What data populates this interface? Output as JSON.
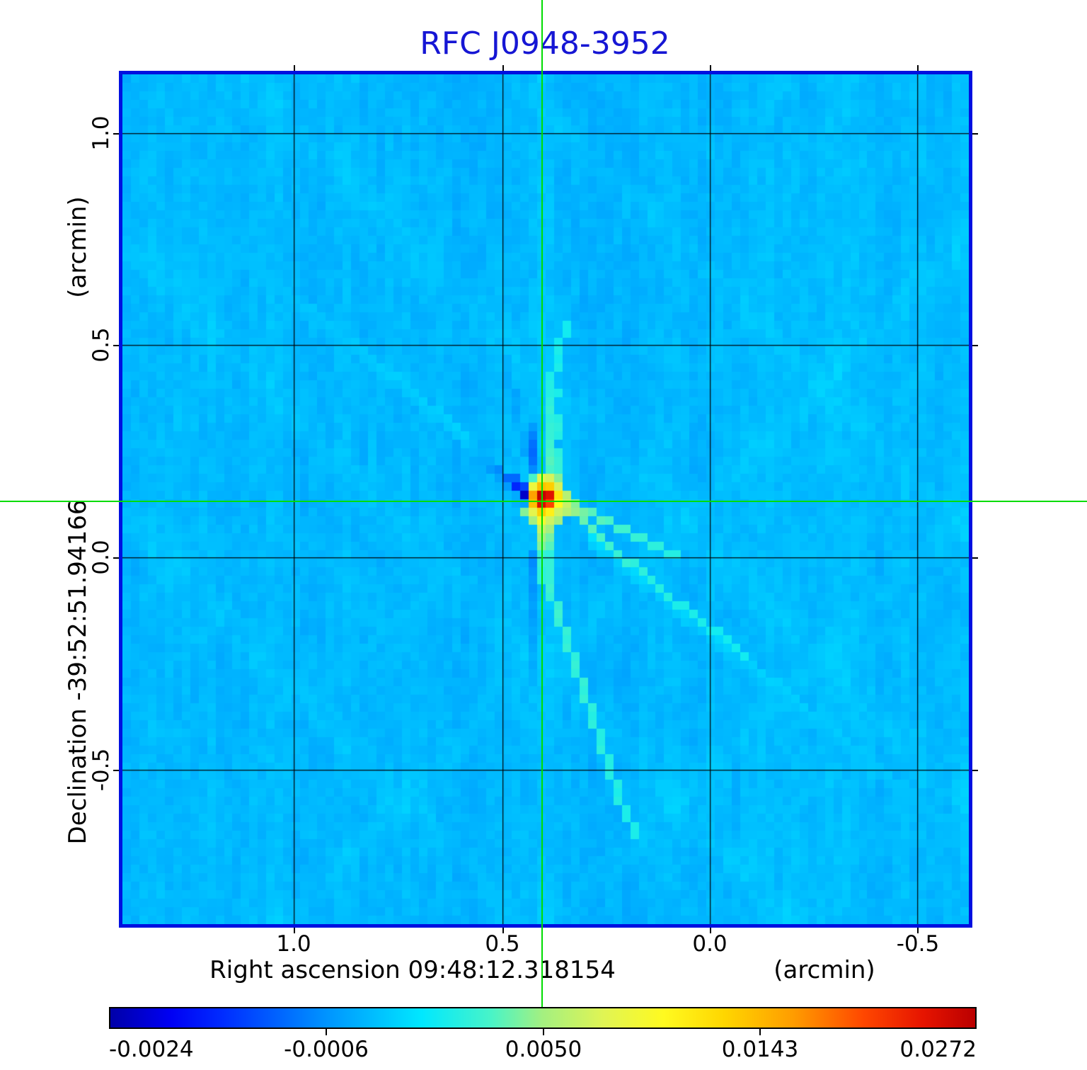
{
  "figure": {
    "title": "RFC J0948-3952",
    "title_color": "#1616d4",
    "frame_color": "#0010e0",
    "crosshair_color": "#00dd00"
  },
  "axes": {
    "x": {
      "ticks": [
        "1.0",
        "0.5",
        "0.0",
        "-0.5"
      ],
      "label_main": "Right ascension  09:48:12.318154",
      "label_unit": "(arcmin)"
    },
    "y": {
      "ticks": [
        "1.0",
        "0.5",
        "0.0",
        "-0.5"
      ],
      "label_main": "Declination  -39:52:51.94166",
      "label_unit": "(arcmin)"
    }
  },
  "colorbar": {
    "labels": [
      "-0.0024",
      "-0.0006",
      "0.0050",
      "0.0143",
      "0.0272"
    ]
  },
  "chart_data": {
    "type": "heatmap",
    "title": "RFC J0948-3952",
    "xlabel": "Right ascension  09:48:12.318154 (arcmin)",
    "ylabel": "Declination  -39:52:51.94166 (arcmin)",
    "x_ticks_arcmin": [
      1.0,
      0.5,
      0.0,
      -0.5
    ],
    "y_ticks_arcmin": [
      1.0,
      0.5,
      0.0,
      -0.5
    ],
    "x_range_arcmin": [
      1.41,
      -0.61
    ],
    "y_range_arcmin": [
      1.14,
      -0.86
    ],
    "grid": true,
    "value_range": [
      -0.0024,
      0.0272
    ],
    "colorbar_ticks": [
      -0.0024,
      -0.0006,
      0.005,
      0.0143,
      0.0272
    ],
    "intensity_scale": "v = -0.0024 + 0.0296 * p^2 (quadratic stretch, p in [0,1])",
    "peak_source": {
      "ra": "09:48:12.318154",
      "dec": "-39:52:51.94166",
      "peak_value": 0.0272,
      "marker": "green crosshair"
    },
    "background_noise_value": 0.0003,
    "colormap_stops": [
      [
        0.0,
        0,
        0,
        168
      ],
      [
        0.07,
        0,
        0,
        244
      ],
      [
        0.13,
        0,
        44,
        255
      ],
      [
        0.25,
        0,
        148,
        255
      ],
      [
        0.36,
        0,
        232,
        255
      ],
      [
        0.44,
        72,
        244,
        200
      ],
      [
        0.5,
        164,
        240,
        128
      ],
      [
        0.57,
        224,
        244,
        84
      ],
      [
        0.64,
        255,
        250,
        32
      ],
      [
        0.71,
        255,
        214,
        0
      ],
      [
        0.79,
        255,
        156,
        0
      ],
      [
        0.87,
        255,
        72,
        0
      ],
      [
        0.94,
        230,
        20,
        0
      ],
      [
        1.0,
        186,
        0,
        0
      ]
    ],
    "render": {
      "seed": 1337,
      "cols": 100,
      "rows": 100,
      "base": 0.3,
      "col_amp": 0.016,
      "noise_amp": 0.045,
      "core": [
        49,
        49
      ],
      "bands": [
        {
          "dir": "d",
          "c": -20,
          "amp": 0.013,
          "w": 2.5
        },
        {
          "dir": "d",
          "c": 14,
          "amp": 0.011,
          "w": 3
        },
        {
          "dir": "d",
          "c": 46,
          "amp": 0.012,
          "w": 2
        },
        {
          "dir": "d",
          "c": -52,
          "amp": 0.011,
          "w": 2.5
        },
        {
          "dir": "a",
          "c": 118,
          "amp": 0.012,
          "w": 2.5
        },
        {
          "dir": "a",
          "c": 150,
          "amp": 0.01,
          "w": 2
        }
      ],
      "rays": [
        {
          "dx": 1,
          "dy": 0.8,
          "start": 6,
          "steps": 55,
          "amp": 0.055
        },
        {
          "dx": -1,
          "dy": -0.8,
          "start": 9,
          "steps": 40,
          "amp": 0.04
        },
        {
          "dx": 1,
          "dy": -0.85,
          "start": 20,
          "steps": 30,
          "amp": 0.03
        },
        {
          "dx": -1,
          "dy": 0.85,
          "start": 12,
          "steps": 30,
          "amp": 0.025
        }
      ],
      "patches": [
        [
          0,
          0,
          0.99
        ],
        [
          1,
          0,
          0.95
        ],
        [
          0,
          1,
          0.96
        ],
        [
          1,
          1,
          0.88
        ],
        [
          0,
          -1,
          0.74
        ],
        [
          1,
          -1,
          0.72
        ],
        [
          -1,
          0,
          0.78
        ],
        [
          2,
          0,
          0.68
        ],
        [
          -1,
          1,
          0.74
        ],
        [
          2,
          1,
          0.64
        ],
        [
          0,
          2,
          0.72
        ],
        [
          1,
          2,
          0.66
        ],
        [
          -1,
          -1,
          0.6
        ],
        [
          2,
          -1,
          0.56
        ],
        [
          -1,
          2,
          0.58
        ],
        [
          2,
          2,
          0.55
        ],
        [
          0,
          -2,
          0.58
        ],
        [
          1,
          -2,
          0.56
        ],
        [
          0,
          3,
          0.62
        ],
        [
          1,
          3,
          0.55
        ],
        [
          3,
          0,
          0.52
        ],
        [
          3,
          1,
          0.54
        ],
        [
          3,
          2,
          0.52
        ],
        [
          -2,
          2,
          0.48
        ],
        [
          -1,
          3,
          0.5
        ],
        [
          2,
          3,
          0.5
        ],
        [
          0,
          4,
          0.54
        ],
        [
          1,
          4,
          0.5
        ],
        [
          2,
          -2,
          0.48
        ],
        [
          -1,
          -2,
          0.44
        ],
        [
          0,
          5,
          0.5
        ],
        [
          1,
          5,
          0.47
        ],
        [
          0,
          6,
          0.48
        ],
        [
          1,
          6,
          0.45
        ],
        [
          -2,
          0,
          0.03
        ],
        [
          -2,
          -1,
          0.16
        ],
        [
          -2,
          1,
          0.27
        ],
        [
          -3,
          -1,
          0.12
        ],
        [
          -3,
          -2,
          0.2
        ],
        [
          -4,
          -2,
          0.2
        ],
        [
          -4,
          -1,
          0.26
        ],
        [
          -5,
          -3,
          0.24
        ],
        [
          -5,
          -2,
          0.27
        ],
        [
          -6,
          -3,
          0.26
        ],
        [
          -6,
          -4,
          0.28
        ],
        [
          -7,
          -4,
          0.28
        ],
        [
          -3,
          0,
          0.28
        ],
        [
          -8,
          -5,
          0.3
        ],
        [
          -7,
          -5,
          0.29
        ],
        [
          -1,
          -3,
          0.24
        ],
        [
          -1,
          -4,
          0.21
        ],
        [
          -1,
          -5,
          0.2
        ],
        [
          -1,
          -6,
          0.21
        ],
        [
          -1,
          -7,
          0.23
        ],
        [
          -1,
          -8,
          0.26
        ],
        [
          -2,
          -5,
          0.27
        ],
        [
          -2,
          -6,
          0.28
        ],
        [
          -2,
          -7,
          0.28
        ],
        [
          -3,
          -9,
          0.28
        ],
        [
          -3,
          -10,
          0.27
        ],
        [
          -3,
          -11,
          0.28
        ],
        [
          -3,
          -12,
          0.27
        ],
        [
          -4,
          -13,
          0.28
        ],
        [
          -4,
          -14,
          0.28
        ],
        [
          -4,
          -15,
          0.29
        ],
        [
          -4,
          -16,
          0.29
        ],
        [
          1,
          -3,
          0.44
        ],
        [
          2,
          -3,
          0.42
        ],
        [
          1,
          -4,
          0.45
        ],
        [
          2,
          -4,
          0.42
        ],
        [
          1,
          -5,
          0.44
        ],
        [
          2,
          -5,
          0.41
        ],
        [
          1,
          -6,
          0.43
        ],
        [
          1,
          -7,
          0.42
        ],
        [
          2,
          -7,
          0.4
        ],
        [
          1,
          -8,
          0.42
        ],
        [
          2,
          -8,
          0.41
        ],
        [
          1,
          -9,
          0.41
        ],
        [
          2,
          -9,
          0.4
        ],
        [
          1,
          -10,
          0.42
        ],
        [
          1,
          -11,
          0.41
        ],
        [
          1,
          -12,
          0.4
        ],
        [
          2,
          -12,
          0.39
        ],
        [
          1,
          -13,
          0.4
        ],
        [
          1,
          -14,
          0.39
        ],
        [
          2,
          -15,
          0.39
        ],
        [
          2,
          -16,
          0.38
        ],
        [
          2,
          -17,
          0.39
        ],
        [
          2,
          -18,
          0.38
        ],
        [
          3,
          -19,
          0.38
        ],
        [
          3,
          -20,
          0.38
        ],
        [
          -1,
          7,
          0.25
        ],
        [
          -1,
          8,
          0.24
        ],
        [
          -1,
          9,
          0.25
        ],
        [
          -1,
          10,
          0.26
        ],
        [
          -1,
          11,
          0.25
        ],
        [
          -1,
          12,
          0.26
        ],
        [
          -1,
          13,
          0.27
        ],
        [
          -1,
          14,
          0.26
        ],
        [
          -1,
          15,
          0.27
        ],
        [
          -1,
          16,
          0.28
        ],
        [
          -1,
          17,
          0.27
        ],
        [
          -1,
          18,
          0.28
        ],
        [
          -1,
          19,
          0.29
        ],
        [
          -1,
          20,
          0.28
        ],
        [
          -1,
          21,
          0.29
        ],
        [
          -1,
          22,
          0.29
        ],
        [
          0,
          7,
          0.42
        ],
        [
          1,
          7,
          0.41
        ],
        [
          0,
          8,
          0.42
        ],
        [
          1,
          8,
          0.42
        ],
        [
          0,
          9,
          0.41
        ],
        [
          1,
          9,
          0.42
        ],
        [
          0,
          10,
          0.41
        ],
        [
          1,
          10,
          0.42
        ],
        [
          1,
          11,
          0.43
        ],
        [
          1,
          12,
          0.42
        ],
        [
          2,
          13,
          0.42
        ],
        [
          2,
          14,
          0.43
        ],
        [
          2,
          15,
          0.42
        ],
        [
          3,
          16,
          0.42
        ],
        [
          3,
          17,
          0.41
        ],
        [
          3,
          18,
          0.42
        ],
        [
          4,
          19,
          0.41
        ],
        [
          4,
          20,
          0.42
        ],
        [
          4,
          21,
          0.41
        ],
        [
          5,
          22,
          0.42
        ],
        [
          5,
          23,
          0.41
        ],
        [
          5,
          24,
          0.42
        ],
        [
          6,
          25,
          0.41
        ],
        [
          6,
          26,
          0.4
        ],
        [
          6,
          27,
          0.41
        ],
        [
          7,
          28,
          0.4
        ],
        [
          7,
          29,
          0.4
        ],
        [
          7,
          30,
          0.41
        ],
        [
          8,
          31,
          0.4
        ],
        [
          8,
          32,
          0.4
        ],
        [
          8,
          33,
          0.4
        ],
        [
          9,
          34,
          0.4
        ],
        [
          9,
          35,
          0.39
        ],
        [
          9,
          36,
          0.4
        ],
        [
          10,
          37,
          0.39
        ],
        [
          10,
          38,
          0.39
        ],
        [
          11,
          39,
          0.39
        ],
        [
          11,
          40,
          0.39
        ],
        [
          4,
          1,
          0.48
        ],
        [
          5,
          2,
          0.47
        ],
        [
          6,
          2,
          0.45
        ],
        [
          7,
          3,
          0.45
        ],
        [
          8,
          3,
          0.44
        ],
        [
          9,
          4,
          0.43
        ],
        [
          10,
          4,
          0.43
        ],
        [
          11,
          5,
          0.42
        ],
        [
          12,
          5,
          0.42
        ],
        [
          13,
          6,
          0.41
        ],
        [
          14,
          6,
          0.41
        ],
        [
          15,
          7,
          0.4
        ],
        [
          16,
          7,
          0.4
        ],
        [
          4,
          2,
          0.49
        ],
        [
          5,
          3,
          0.46
        ],
        [
          6,
          4,
          0.45
        ],
        [
          7,
          5,
          0.44
        ],
        [
          8,
          6,
          0.43
        ],
        [
          9,
          7,
          0.42
        ],
        [
          10,
          8,
          0.42
        ],
        [
          11,
          8,
          0.41
        ],
        [
          12,
          9,
          0.41
        ],
        [
          13,
          10,
          0.4
        ],
        [
          14,
          11,
          0.4
        ],
        [
          15,
          12,
          0.4
        ],
        [
          16,
          13,
          0.39
        ],
        [
          17,
          13,
          0.39
        ],
        [
          18,
          14,
          0.39
        ],
        [
          19,
          15,
          0.39
        ],
        [
          20,
          16,
          0.38
        ],
        [
          21,
          16,
          0.38
        ],
        [
          22,
          17,
          0.38
        ],
        [
          23,
          18,
          0.38
        ],
        [
          24,
          19,
          0.38
        ]
      ]
    }
  }
}
